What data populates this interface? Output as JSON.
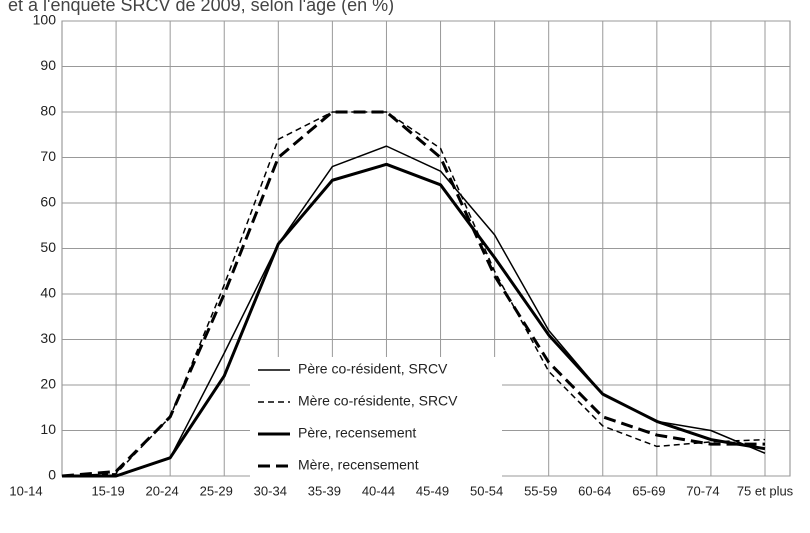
{
  "chart_data": {
    "type": "line",
    "title": "et à l'enquête SRCV de 2009, selon l'âge (en %)",
    "categories": [
      "10-14",
      "15-19",
      "20-24",
      "25-29",
      "30-34",
      "35-39",
      "40-44",
      "45-49",
      "50-54",
      "55-59",
      "60-64",
      "65-69",
      "70-74",
      "75 et plus"
    ],
    "series": [
      {
        "name": "Père co-résident, SRCV",
        "color": "#000000",
        "line_style": "solid",
        "line_width": 1.5,
        "values": [
          0,
          0,
          4,
          27,
          51,
          68,
          72.5,
          67,
          53,
          32,
          18,
          12,
          10,
          5
        ]
      },
      {
        "name": "Mère co-résidente, SRCV",
        "color": "#000000",
        "line_style": "dashed",
        "line_width": 1.5,
        "values": [
          0,
          0.5,
          13,
          42,
          74,
          80,
          80,
          72,
          45,
          23,
          11,
          6.5,
          7.5,
          8
        ]
      },
      {
        "name": "Père, recensement",
        "color": "#000000",
        "line_style": "solid",
        "line_width": 3,
        "values": [
          0,
          0,
          4,
          22,
          51,
          65,
          68.5,
          64,
          48,
          31,
          18,
          12,
          8,
          6
        ]
      },
      {
        "name": "Mère, recensement",
        "color": "#000000",
        "line_style": "dashed",
        "line_width": 3,
        "values": [
          0,
          1,
          13,
          40,
          70,
          80,
          80,
          70,
          44,
          25,
          13,
          9,
          7,
          7
        ]
      }
    ],
    "ylim": [
      0,
      100
    ],
    "yticks": [
      0,
      10,
      20,
      30,
      40,
      50,
      60,
      70,
      80,
      90,
      100
    ],
    "grid": true
  }
}
